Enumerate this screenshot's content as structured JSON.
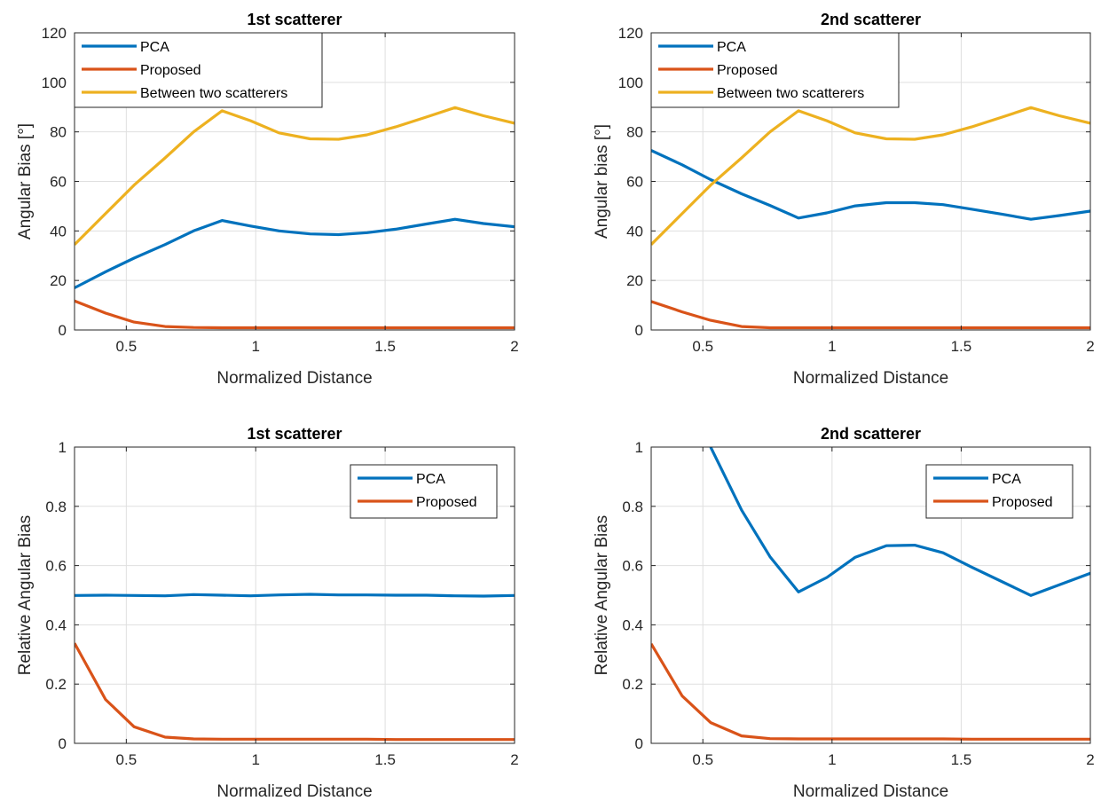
{
  "chart_data": [
    {
      "type": "line",
      "title": "1st scatterer",
      "xlabel": "Normalized Distance",
      "ylabel": "Angular Bias [°]",
      "xlim": [
        0.3,
        2.0
      ],
      "ylim": [
        0,
        120
      ],
      "xticks": [
        0.5,
        1,
        1.5,
        2
      ],
      "yticks": [
        0,
        20,
        40,
        60,
        80,
        100,
        120
      ],
      "grid": true,
      "legend_position": "top-left",
      "series": [
        {
          "name": "PCA",
          "color": "#0072BD",
          "x": [
            0.3,
            0.42,
            0.53,
            0.65,
            0.76,
            0.87,
            0.98,
            1.09,
            1.21,
            1.32,
            1.43,
            1.54,
            1.66,
            1.77,
            1.88,
            2.0
          ],
          "y": [
            17,
            23.5,
            29,
            34.5,
            40,
            44.2,
            42,
            40,
            38.8,
            38.5,
            39.3,
            40.7,
            42.8,
            44.7,
            43,
            41.7
          ]
        },
        {
          "name": "Proposed",
          "color": "#D95319",
          "x": [
            0.3,
            0.42,
            0.53,
            0.65,
            0.76,
            0.87,
            0.98,
            1.09,
            1.21,
            1.32,
            1.43,
            1.54,
            1.66,
            1.77,
            1.88,
            2.0
          ],
          "y": [
            11.7,
            6.8,
            3.2,
            1.4,
            1.0,
            0.9,
            0.9,
            0.9,
            0.9,
            0.9,
            0.9,
            0.9,
            0.9,
            0.9,
            0.9,
            0.9
          ]
        },
        {
          "name": "Between two scatterers",
          "color": "#EDB120",
          "x": [
            0.3,
            0.42,
            0.53,
            0.65,
            0.76,
            0.87,
            0.98,
            1.09,
            1.21,
            1.32,
            1.43,
            1.54,
            1.66,
            1.77,
            1.88,
            2.0
          ],
          "y": [
            34.5,
            47,
            58.5,
            69.5,
            80,
            88.5,
            84.5,
            79.6,
            77.2,
            77,
            78.8,
            82,
            86,
            89.8,
            86.5,
            83.5
          ]
        }
      ]
    },
    {
      "type": "line",
      "title": "2nd scatterer",
      "xlabel": "Normalized Distance",
      "ylabel": "Angular bias [°]",
      "xlim": [
        0.3,
        2.0
      ],
      "ylim": [
        0,
        120
      ],
      "xticks": [
        0.5,
        1,
        1.5,
        2
      ],
      "yticks": [
        0,
        20,
        40,
        60,
        80,
        100,
        120
      ],
      "grid": true,
      "legend_position": "top-left",
      "series": [
        {
          "name": "PCA",
          "color": "#0072BD",
          "x": [
            0.3,
            0.42,
            0.53,
            0.65,
            0.76,
            0.87,
            0.98,
            1.09,
            1.21,
            1.32,
            1.43,
            1.54,
            1.66,
            1.77,
            1.88,
            2.0
          ],
          "y": [
            72.5,
            66.7,
            60.7,
            55,
            50.3,
            45.2,
            47.3,
            50.1,
            51.4,
            51.4,
            50.6,
            48.8,
            46.7,
            44.7,
            46.2,
            48
          ]
        },
        {
          "name": "Proposed",
          "color": "#D95319",
          "x": [
            0.3,
            0.42,
            0.53,
            0.65,
            0.76,
            0.87,
            0.98,
            1.09,
            1.21,
            1.32,
            1.43,
            1.54,
            1.66,
            1.77,
            1.88,
            2.0
          ],
          "y": [
            11.5,
            7.3,
            3.9,
            1.4,
            0.9,
            0.9,
            0.9,
            0.9,
            0.9,
            0.9,
            0.9,
            0.9,
            0.9,
            0.9,
            0.9,
            0.9
          ]
        },
        {
          "name": "Between two scatterers",
          "color": "#EDB120",
          "x": [
            0.3,
            0.42,
            0.53,
            0.65,
            0.76,
            0.87,
            0.98,
            1.09,
            1.21,
            1.32,
            1.43,
            1.54,
            1.66,
            1.77,
            1.88,
            2.0
          ],
          "y": [
            34.5,
            47,
            58.5,
            69.5,
            80,
            88.5,
            84.5,
            79.6,
            77.2,
            77,
            78.8,
            82,
            86,
            89.8,
            86.5,
            83.5
          ]
        }
      ]
    },
    {
      "type": "line",
      "title": "1st scatterer",
      "xlabel": "Normalized Distance",
      "ylabel": "Relative Angular Bias",
      "xlim": [
        0.3,
        2.0
      ],
      "ylim": [
        0,
        1
      ],
      "xticks": [
        0.5,
        1,
        1.5,
        2
      ],
      "yticks": [
        0,
        0.2,
        0.4,
        0.6,
        0.8,
        1
      ],
      "grid": true,
      "legend_position": "top-right",
      "series": [
        {
          "name": "PCA",
          "color": "#0072BD",
          "x": [
            0.3,
            0.42,
            0.53,
            0.65,
            0.76,
            0.87,
            0.98,
            1.09,
            1.21,
            1.32,
            1.43,
            1.54,
            1.66,
            1.77,
            1.88,
            2.0
          ],
          "y": [
            0.499,
            0.5,
            0.499,
            0.498,
            0.502,
            0.5,
            0.498,
            0.501,
            0.503,
            0.501,
            0.501,
            0.5,
            0.5,
            0.498,
            0.497,
            0.499
          ]
        },
        {
          "name": "Proposed",
          "color": "#D95319",
          "x": [
            0.3,
            0.42,
            0.53,
            0.65,
            0.76,
            0.87,
            0.98,
            1.09,
            1.21,
            1.32,
            1.43,
            1.54,
            1.66,
            1.77,
            1.88,
            2.0
          ],
          "y": [
            0.338,
            0.148,
            0.056,
            0.021,
            0.015,
            0.014,
            0.014,
            0.014,
            0.014,
            0.014,
            0.014,
            0.013,
            0.013,
            0.013,
            0.013,
            0.013
          ]
        }
      ]
    },
    {
      "type": "line",
      "title": "2nd scatterer",
      "xlabel": "Normalized Distance",
      "ylabel": "Relative Angular Bias",
      "xlim": [
        0.3,
        2.0
      ],
      "ylim": [
        0,
        1
      ],
      "xticks": [
        0.5,
        1,
        1.5,
        2
      ],
      "yticks": [
        0,
        0.2,
        0.4,
        0.6,
        0.8,
        1
      ],
      "grid": true,
      "legend_position": "top-right",
      "series": [
        {
          "name": "PCA",
          "color": "#0072BD",
          "x": [
            0.53,
            0.65,
            0.76,
            0.87,
            0.98,
            1.09,
            1.21,
            1.32,
            1.43,
            1.54,
            1.66,
            1.77,
            1.88,
            2.0
          ],
          "y": [
            1.0,
            0.787,
            0.63,
            0.511,
            0.56,
            0.628,
            0.667,
            0.669,
            0.643,
            0.595,
            0.545,
            0.499,
            0.535,
            0.574
          ]
        },
        {
          "name": "Proposed",
          "color": "#D95319",
          "x": [
            0.3,
            0.42,
            0.53,
            0.65,
            0.76,
            0.87,
            0.98,
            1.09,
            1.21,
            1.32,
            1.43,
            1.54,
            1.66,
            1.77,
            1.88,
            2.0
          ],
          "y": [
            0.336,
            0.16,
            0.07,
            0.025,
            0.016,
            0.015,
            0.015,
            0.015,
            0.015,
            0.015,
            0.015,
            0.014,
            0.014,
            0.014,
            0.014,
            0.014
          ]
        }
      ]
    }
  ]
}
